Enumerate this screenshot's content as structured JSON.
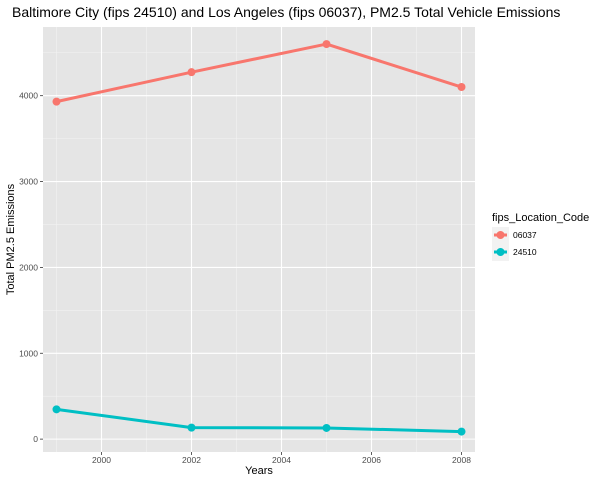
{
  "chart_data": {
    "type": "line",
    "title": "Baltimore City (fips 24510) and Los Angeles (fips 06037), PM2.5 Total Vehicle Emissions",
    "xlabel": "Years",
    "ylabel": "Total PM2.5 Emissions",
    "xlim": [
      1998.7,
      2008.3
    ],
    "ylim": [
      -150,
      4800
    ],
    "xticks": [
      2000,
      2002,
      2004,
      2006,
      2008
    ],
    "yticks": [
      0,
      1000,
      2000,
      3000,
      4000
    ],
    "grid": true,
    "legend": {
      "title": "fips_Location_Code",
      "position": "right"
    },
    "series": [
      {
        "name": "06037",
        "color": "#F8766D",
        "x": [
          1999,
          2002,
          2005,
          2008
        ],
        "y": [
          3931,
          4274,
          4601,
          4101
        ]
      },
      {
        "name": "24510",
        "color": "#00BFC4",
        "x": [
          1999,
          2002,
          2005,
          2008
        ],
        "y": [
          347,
          134,
          130,
          88
        ]
      }
    ]
  }
}
